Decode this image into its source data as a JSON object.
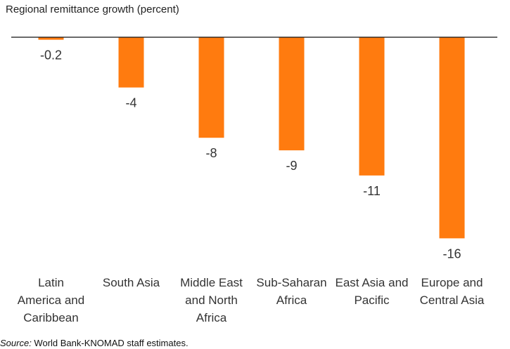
{
  "chart_data": {
    "type": "bar",
    "title": "Regional remittance growth (percent)",
    "xlabel": "",
    "ylabel": "",
    "categories": [
      "Latin America and Caribbean",
      "South Asia",
      "Middle East and North Africa",
      "Sub-Saharan Africa",
      "East Asia and Pacific",
      "Europe and Central Asia"
    ],
    "category_lines": [
      [
        "Latin",
        "America and",
        "Caribbean"
      ],
      [
        "South Asia"
      ],
      [
        "Middle East",
        "and North",
        "Africa"
      ],
      [
        "Sub-Saharan",
        "Africa"
      ],
      [
        "East Asia and",
        "Pacific"
      ],
      [
        "Europe and",
        "Central Asia"
      ]
    ],
    "values": [
      -0.2,
      -4,
      -8,
      -9,
      -11,
      -16
    ],
    "value_labels": [
      "-0.2",
      "-4",
      "-8",
      "-9",
      "-11",
      "-16"
    ],
    "ylim": [
      -16,
      0
    ],
    "bar_color": "#ff7b0f",
    "grid": false,
    "legend": "none"
  },
  "source": {
    "label": "Source:",
    "text": " World Bank-KNOMAD staff estimates."
  }
}
